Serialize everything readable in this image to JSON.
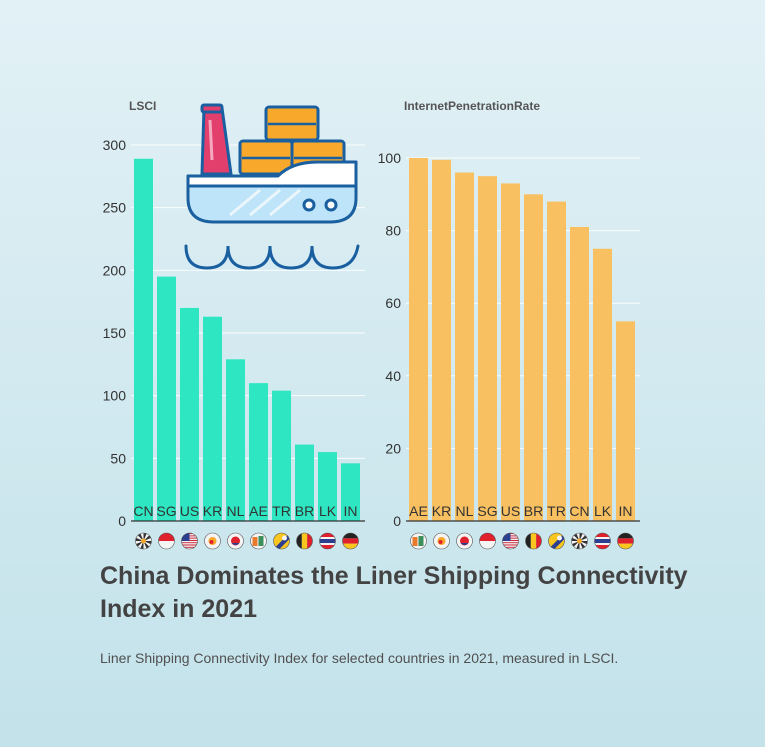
{
  "chart_data": [
    {
      "type": "bar",
      "title": "LSCI",
      "categories": [
        "CN",
        "SG",
        "US",
        "KR",
        "NL",
        "AE",
        "TR",
        "BR",
        "LK",
        "IN"
      ],
      "values": [
        289,
        195,
        170,
        163,
        129,
        110,
        104,
        61,
        55,
        46
      ],
      "ylim": [
        0,
        300
      ],
      "yticks": [
        0,
        50,
        100,
        150,
        200,
        250,
        300
      ],
      "color": "#2ee6c1",
      "grid": true
    },
    {
      "type": "bar",
      "title": "InternetPenetrationRate",
      "categories": [
        "AE",
        "KR",
        "NL",
        "SG",
        "US",
        "BR",
        "TR",
        "CN",
        "LK",
        "IN"
      ],
      "values": [
        100,
        99.5,
        96,
        95,
        93,
        90,
        88,
        81,
        75,
        55
      ],
      "ylim": [
        0,
        100
      ],
      "yticks": [
        0,
        20,
        40,
        60,
        80,
        100
      ],
      "color": "#f8c061",
      "grid": true
    }
  ],
  "flags": {
    "CN": "flag-cn-icon",
    "SG": "flag-sg-icon",
    "US": "flag-us-icon",
    "KR": "flag-kr-icon",
    "NL": "flag-nl-icon",
    "AE": "flag-ae-icon",
    "TR": "flag-tr-icon",
    "BR": "flag-br-icon",
    "LK": "flag-lk-icon",
    "IN": "flag-in-icon"
  },
  "illustration": "cargo-ship-icon",
  "title": "China Dominates the Liner Shipping Connectivity Index in 2021",
  "subtitle": "Liner Shipping Connectivity Index for selected countries in 2021, measured in LSCI."
}
